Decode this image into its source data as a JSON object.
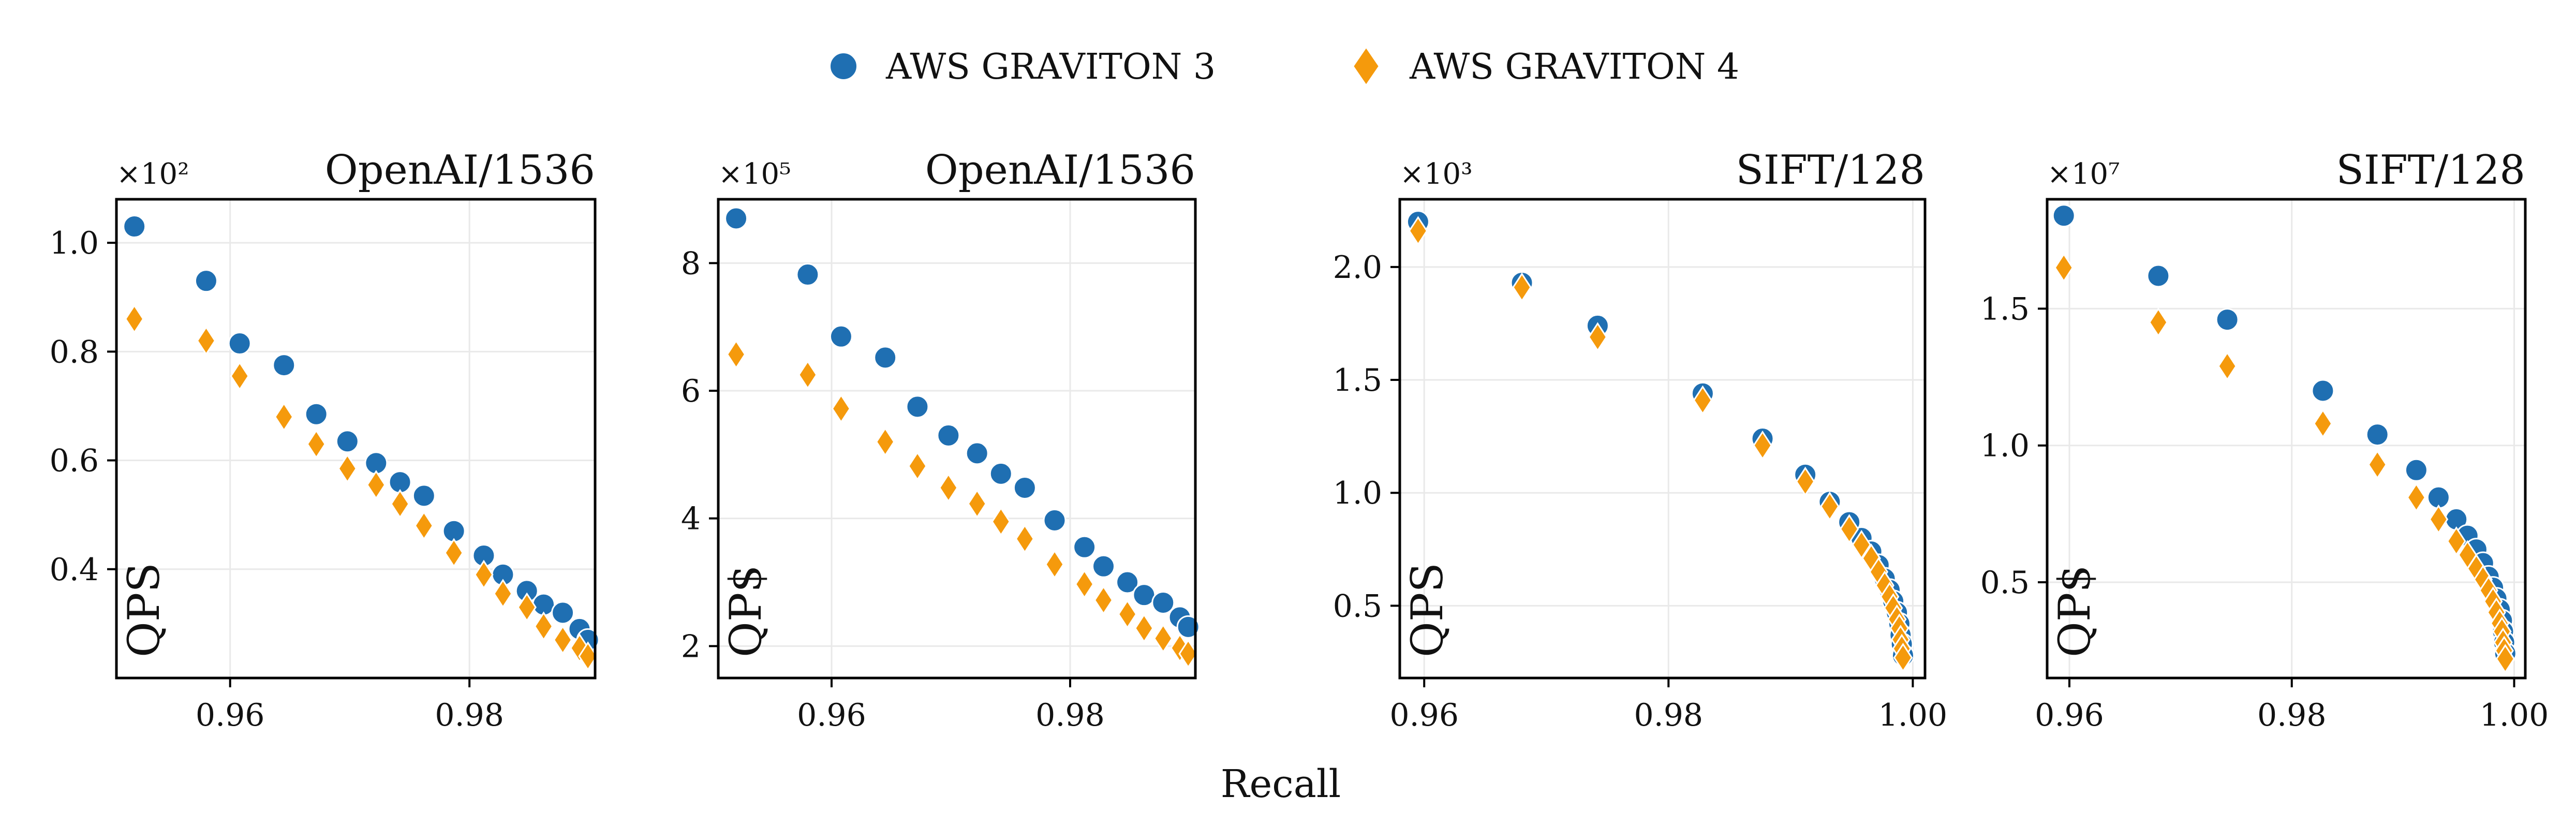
{
  "legend": {
    "placement": "top-center",
    "items": [
      {
        "label": "AWS GRAVITON 3",
        "marker": "circle",
        "color": "#1f6fb2"
      },
      {
        "label": "AWS GRAVITON 4",
        "marker": "diamond",
        "color": "#f59a0c"
      }
    ]
  },
  "shared_xlabel": "Recall",
  "chart_data": [
    {
      "type": "scatter",
      "title": "OpenAI/1536",
      "multiplier": "×10²",
      "metric": "QPS",
      "xlim": [
        0.9505,
        0.9905
      ],
      "ylim": [
        0.2,
        1.08
      ],
      "xticks": [
        0.96,
        0.98
      ],
      "xtick_labels": [
        "0.96",
        "0.98"
      ],
      "yticks": [
        0.4,
        0.6,
        0.8,
        1.0
      ],
      "ytick_labels": [
        "0.4",
        "0.6",
        "0.8",
        "1.0"
      ],
      "grid": true,
      "series": [
        {
          "name": "AWS GRAVITON 3",
          "x": [
            0.952,
            0.958,
            0.9608,
            0.9645,
            0.9672,
            0.9698,
            0.9722,
            0.9742,
            0.9762,
            0.9787,
            0.9812,
            0.9828,
            0.9848,
            0.9862,
            0.9878,
            0.9892,
            0.9899
          ],
          "y": [
            1.03,
            0.93,
            0.815,
            0.775,
            0.685,
            0.635,
            0.595,
            0.56,
            0.535,
            0.47,
            0.425,
            0.39,
            0.36,
            0.335,
            0.32,
            0.29,
            0.27
          ]
        },
        {
          "name": "AWS GRAVITON 4",
          "x": [
            0.952,
            0.958,
            0.9608,
            0.9645,
            0.9672,
            0.9698,
            0.9722,
            0.9742,
            0.9762,
            0.9787,
            0.9812,
            0.9828,
            0.9848,
            0.9862,
            0.9878,
            0.9892,
            0.9899
          ],
          "y": [
            0.86,
            0.82,
            0.755,
            0.68,
            0.63,
            0.585,
            0.555,
            0.52,
            0.48,
            0.43,
            0.39,
            0.355,
            0.33,
            0.295,
            0.27,
            0.255,
            0.24
          ]
        }
      ]
    },
    {
      "type": "scatter",
      "title": "OpenAI/1536",
      "multiplier": "×10⁵",
      "metric": "QP$",
      "xlim": [
        0.9505,
        0.9905
      ],
      "ylim": [
        1.5,
        9.0
      ],
      "xticks": [
        0.96,
        0.98
      ],
      "xtick_labels": [
        "0.96",
        "0.98"
      ],
      "yticks": [
        2,
        4,
        6,
        8
      ],
      "ytick_labels": [
        "2",
        "4",
        "6",
        "8"
      ],
      "grid": true,
      "series": [
        {
          "name": "AWS GRAVITON 3",
          "x": [
            0.952,
            0.958,
            0.9608,
            0.9645,
            0.9672,
            0.9698,
            0.9722,
            0.9742,
            0.9762,
            0.9787,
            0.9812,
            0.9828,
            0.9848,
            0.9862,
            0.9878,
            0.9892,
            0.9899
          ],
          "y": [
            8.7,
            7.82,
            6.85,
            6.52,
            5.75,
            5.3,
            5.02,
            4.7,
            4.48,
            3.97,
            3.55,
            3.25,
            3.0,
            2.8,
            2.68,
            2.45,
            2.3
          ]
        },
        {
          "name": "AWS GRAVITON 4",
          "x": [
            0.952,
            0.958,
            0.9608,
            0.9645,
            0.9672,
            0.9698,
            0.9722,
            0.9742,
            0.9762,
            0.9787,
            0.9812,
            0.9828,
            0.9848,
            0.9862,
            0.9878,
            0.9892,
            0.9899
          ],
          "y": [
            6.57,
            6.25,
            5.72,
            5.2,
            4.82,
            4.48,
            4.23,
            3.95,
            3.68,
            3.28,
            2.97,
            2.72,
            2.5,
            2.28,
            2.12,
            1.97,
            1.88
          ]
        }
      ]
    },
    {
      "type": "scatter",
      "title": "SIFT/128",
      "multiplier": "×10³",
      "metric": "QPS",
      "xlim": [
        0.958,
        1.001
      ],
      "ylim": [
        0.18,
        2.3
      ],
      "xticks": [
        0.96,
        0.98,
        1.0
      ],
      "xtick_labels": [
        "0.96",
        "0.98",
        "1.00"
      ],
      "yticks": [
        0.5,
        1.0,
        1.5,
        2.0
      ],
      "ytick_labels": [
        "0.5",
        "1.0",
        "1.5",
        "2.0"
      ],
      "grid": true,
      "series": [
        {
          "name": "AWS GRAVITON 3",
          "x": [
            0.9595,
            0.968,
            0.9742,
            0.9828,
            0.9877,
            0.9912,
            0.9932,
            0.9948,
            0.9958,
            0.9966,
            0.9972,
            0.9977,
            0.9981,
            0.9984,
            0.9987,
            0.9989,
            0.999,
            0.9991,
            0.9992
          ],
          "y": [
            2.2,
            1.93,
            1.74,
            1.44,
            1.24,
            1.08,
            0.96,
            0.87,
            0.8,
            0.74,
            0.68,
            0.62,
            0.57,
            0.52,
            0.47,
            0.42,
            0.37,
            0.33,
            0.28
          ]
        },
        {
          "name": "AWS GRAVITON 4",
          "x": [
            0.9595,
            0.968,
            0.9742,
            0.9828,
            0.9877,
            0.9912,
            0.9932,
            0.9948,
            0.9958,
            0.9966,
            0.9972,
            0.9977,
            0.9981,
            0.9984,
            0.9987,
            0.9989,
            0.999,
            0.9991,
            0.9992
          ],
          "y": [
            2.16,
            1.91,
            1.69,
            1.41,
            1.21,
            1.05,
            0.94,
            0.84,
            0.77,
            0.71,
            0.65,
            0.59,
            0.54,
            0.49,
            0.44,
            0.4,
            0.35,
            0.31,
            0.27
          ]
        }
      ]
    },
    {
      "type": "scatter",
      "title": "SIFT/128",
      "multiplier": "×10⁷",
      "metric": "QP$",
      "xlim": [
        0.958,
        1.001
      ],
      "ylim": [
        0.15,
        1.9
      ],
      "xticks": [
        0.96,
        0.98,
        1.0
      ],
      "xtick_labels": [
        "0.96",
        "0.98",
        "1.00"
      ],
      "yticks": [
        0.5,
        1.0,
        1.5
      ],
      "ytick_labels": [
        "0.5",
        "1.0",
        "1.5"
      ],
      "grid": true,
      "series": [
        {
          "name": "AWS GRAVITON 3",
          "x": [
            0.9595,
            0.968,
            0.9742,
            0.9828,
            0.9877,
            0.9912,
            0.9932,
            0.9948,
            0.9958,
            0.9966,
            0.9972,
            0.9977,
            0.9981,
            0.9984,
            0.9987,
            0.9989,
            0.999,
            0.9991,
            0.9992
          ],
          "y": [
            1.84,
            1.62,
            1.46,
            1.2,
            1.04,
            0.91,
            0.81,
            0.73,
            0.67,
            0.62,
            0.57,
            0.52,
            0.48,
            0.44,
            0.4,
            0.36,
            0.32,
            0.28,
            0.24
          ]
        },
        {
          "name": "AWS GRAVITON 4",
          "x": [
            0.9595,
            0.968,
            0.9742,
            0.9828,
            0.9877,
            0.9912,
            0.9932,
            0.9948,
            0.9958,
            0.9966,
            0.9972,
            0.9977,
            0.9981,
            0.9984,
            0.9987,
            0.9989,
            0.999,
            0.9991,
            0.9992
          ],
          "y": [
            1.65,
            1.45,
            1.29,
            1.08,
            0.93,
            0.81,
            0.73,
            0.65,
            0.6,
            0.55,
            0.51,
            0.47,
            0.43,
            0.39,
            0.35,
            0.32,
            0.28,
            0.25,
            0.22
          ]
        }
      ]
    }
  ]
}
